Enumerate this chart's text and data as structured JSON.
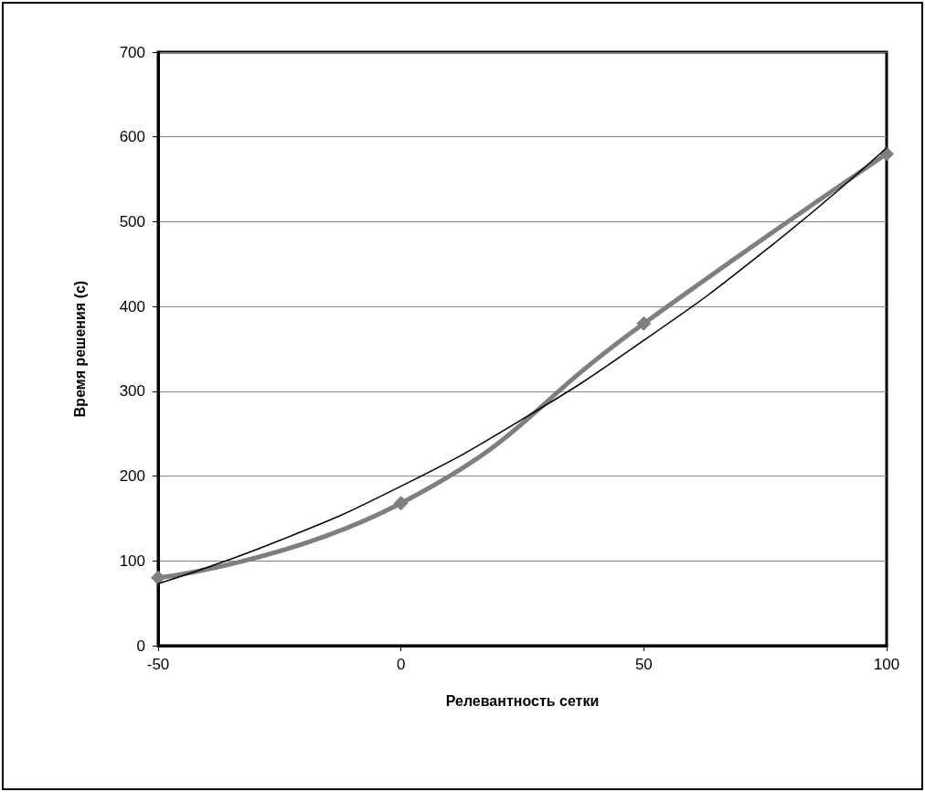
{
  "chart_data": {
    "type": "line",
    "xlabel": "Релевантность сетки",
    "ylabel": "Время решения (с)",
    "xlim": [
      -50,
      100
    ],
    "xticks": [
      -50,
      0,
      50,
      100
    ],
    "ylim": [
      0,
      700
    ],
    "yticks": [
      0,
      100,
      200,
      300,
      400,
      500,
      600,
      700
    ],
    "grid": "y",
    "series": [
      {
        "color": "#7f7f7f",
        "marker": "diamond",
        "line_style": "solid",
        "x": [
          -50,
          0,
          50,
          100
        ],
        "values": [
          80,
          168,
          380,
          580
        ]
      },
      {
        "color": "#000000",
        "marker": "none",
        "line_style": "solid",
        "x": [
          -50,
          -25,
          0,
          25,
          50,
          75,
          100
        ],
        "values": [
          73,
          124,
          188,
          267,
          360,
          466,
          587
        ]
      }
    ]
  }
}
